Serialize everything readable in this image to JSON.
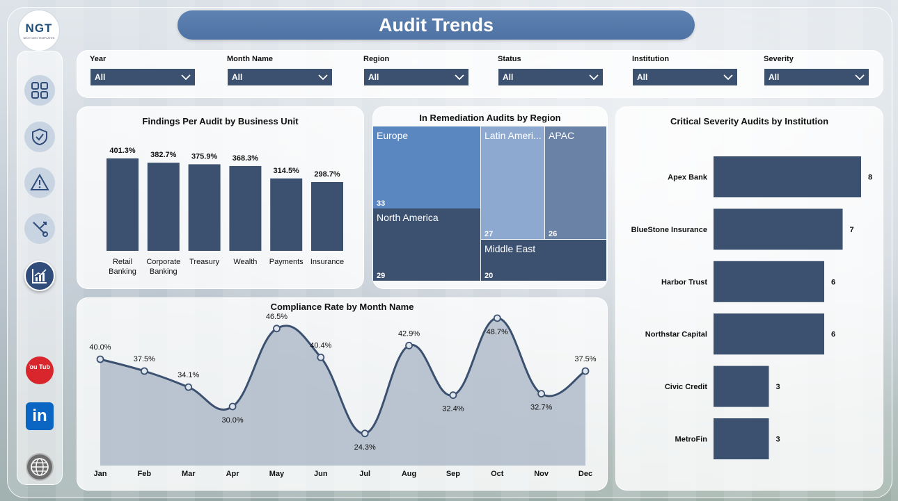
{
  "header": {
    "title": "Audit Trends"
  },
  "logo": {
    "text": "NGT",
    "tagline": "NEXT GEN TEMPLATES"
  },
  "filters": [
    {
      "label": "Year",
      "value": "All"
    },
    {
      "label": "Month Name",
      "value": "All"
    },
    {
      "label": "Region",
      "value": "All"
    },
    {
      "label": "Status",
      "value": "All"
    },
    {
      "label": "Institution",
      "value": "All"
    },
    {
      "label": "Severity",
      "value": "All"
    }
  ],
  "sidebar": {
    "items": [
      {
        "icon": "dashboard-grid-icon"
      },
      {
        "icon": "shield-check-icon"
      },
      {
        "icon": "warning-icon"
      },
      {
        "icon": "tools-icon"
      },
      {
        "icon": "trend-chart-icon"
      }
    ],
    "social": [
      {
        "icon": "youtube-icon",
        "text": "You Tube"
      },
      {
        "icon": "linkedin-icon",
        "text": "in"
      },
      {
        "icon": "globe-icon"
      }
    ]
  },
  "colors": {
    "bar": "#3c5170",
    "accent": "#5b82b5",
    "line": "#3c5170"
  },
  "charts": {
    "findings": {
      "title": "Findings Per Audit by Business Unit"
    },
    "remediation": {
      "title": "In Remediation Audits by Region"
    },
    "critical": {
      "title": "Critical Severity Audits by Institution"
    },
    "compliance": {
      "title": "Compliance Rate by Month Name"
    }
  },
  "chart_data": [
    {
      "id": "findings",
      "type": "bar",
      "title": "Findings Per Audit by Business Unit",
      "categories": [
        [
          "Retail",
          "Banking"
        ],
        [
          "Corporate",
          "Banking"
        ],
        [
          "Treasury"
        ],
        [
          "Wealth"
        ],
        [
          "Payments"
        ],
        [
          "Insurance"
        ]
      ],
      "values": [
        401.3,
        382.7,
        375.9,
        368.3,
        314.5,
        298.7
      ],
      "labels": [
        "401.3%",
        "382.7%",
        "375.9%",
        "368.3%",
        "314.5%",
        "298.7%"
      ],
      "ylim": [
        0,
        401.3
      ]
    },
    {
      "id": "remediation",
      "type": "treemap",
      "title": "In Remediation Audits by Region",
      "items": [
        {
          "name": "Europe",
          "value": 33,
          "color": "#5b87c0"
        },
        {
          "name": "North America",
          "value": 29,
          "color": "#3c5170"
        },
        {
          "name": "Latin Ameri...",
          "value": 27,
          "color": "#8ea9cf"
        },
        {
          "name": "APAC",
          "value": 26,
          "color": "#6a82a6"
        },
        {
          "name": "Middle East",
          "value": 20,
          "color": "#3c5170"
        }
      ]
    },
    {
      "id": "critical",
      "type": "bar",
      "orientation": "horizontal",
      "title": "Critical Severity Audits by Institution",
      "categories": [
        "Apex Bank",
        "BlueStone Insurance",
        "Harbor Trust",
        "Northstar Capital",
        "Civic Credit",
        "MetroFin"
      ],
      "values": [
        8,
        7,
        6,
        6,
        3,
        3
      ],
      "xlim": [
        0,
        8
      ]
    },
    {
      "id": "compliance",
      "type": "area",
      "title": "Compliance Rate by Month Name",
      "x": [
        "Jan",
        "Feb",
        "Mar",
        "Apr",
        "May",
        "Jun",
        "Jul",
        "Aug",
        "Sep",
        "Oct",
        "Nov",
        "Dec"
      ],
      "values": [
        40.0,
        37.5,
        34.1,
        30.0,
        46.5,
        40.4,
        24.3,
        42.9,
        32.4,
        48.7,
        32.7,
        37.5
      ],
      "labels": [
        "40.0%",
        "37.5%",
        "34.1%",
        "30.0%",
        "46.5%",
        "40.4%",
        "24.3%",
        "42.9%",
        "32.4%",
        "48.7%",
        "32.7%",
        "37.5%"
      ],
      "label_pos": [
        "above",
        "above",
        "above",
        "below",
        "above",
        "above",
        "below",
        "above",
        "below",
        "below",
        "below",
        "above"
      ],
      "ylim": [
        17.5,
        50
      ]
    }
  ]
}
